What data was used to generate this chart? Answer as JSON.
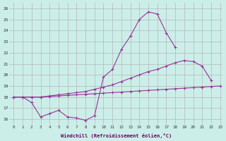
{
  "xlabel": "Windchill (Refroidissement éolien,°C)",
  "background_color": "#cceee8",
  "grid_color": "#aaaaaa",
  "line_color": "#993399",
  "xlim": [
    -0.5,
    23.3
  ],
  "ylim": [
    15.5,
    26.5
  ],
  "yticks": [
    16,
    17,
    18,
    19,
    20,
    21,
    22,
    23,
    24,
    25,
    26
  ],
  "xticks": [
    0,
    1,
    2,
    3,
    4,
    5,
    6,
    7,
    8,
    9,
    10,
    11,
    12,
    13,
    14,
    15,
    16,
    17,
    18,
    19,
    20,
    21,
    22,
    23
  ],
  "line1_x": [
    0,
    1,
    2,
    3,
    4,
    5,
    6,
    7,
    8,
    9,
    10,
    11,
    12,
    13,
    14,
    15,
    16,
    17,
    18,
    19,
    20,
    21,
    22
  ],
  "line1_y": [
    18.0,
    18.0,
    17.5,
    16.2,
    16.5,
    16.8,
    16.2,
    16.1,
    15.9,
    16.3,
    19.8,
    20.5,
    22.3,
    23.5,
    25.0,
    25.7,
    25.5,
    23.8,
    22.5,
    null,
    null,
    null,
    null
  ],
  "line2_x": [
    0,
    1,
    2,
    3,
    4,
    5,
    6,
    7,
    8,
    9,
    10,
    11,
    12,
    13,
    14,
    15,
    16,
    17,
    18,
    19,
    20,
    21,
    22
  ],
  "line2_y": [
    18.0,
    18.0,
    18.0,
    18.0,
    18.1,
    18.2,
    18.3,
    18.4,
    18.5,
    18.7,
    18.9,
    19.1,
    19.4,
    19.7,
    20.0,
    20.3,
    20.5,
    20.8,
    21.1,
    21.3,
    21.2,
    20.8,
    19.5
  ],
  "line3_x": [
    0,
    1,
    2,
    3,
    4,
    5,
    6,
    7,
    8,
    9,
    10,
    11,
    12,
    13,
    14,
    15,
    16,
    17,
    18,
    19,
    20,
    21,
    22,
    23
  ],
  "line3_y": [
    18.0,
    18.0,
    18.0,
    18.0,
    18.05,
    18.1,
    18.15,
    18.2,
    18.25,
    18.3,
    18.35,
    18.4,
    18.45,
    18.5,
    18.55,
    18.6,
    18.65,
    18.7,
    18.75,
    18.8,
    18.85,
    18.9,
    18.95,
    19.0
  ]
}
